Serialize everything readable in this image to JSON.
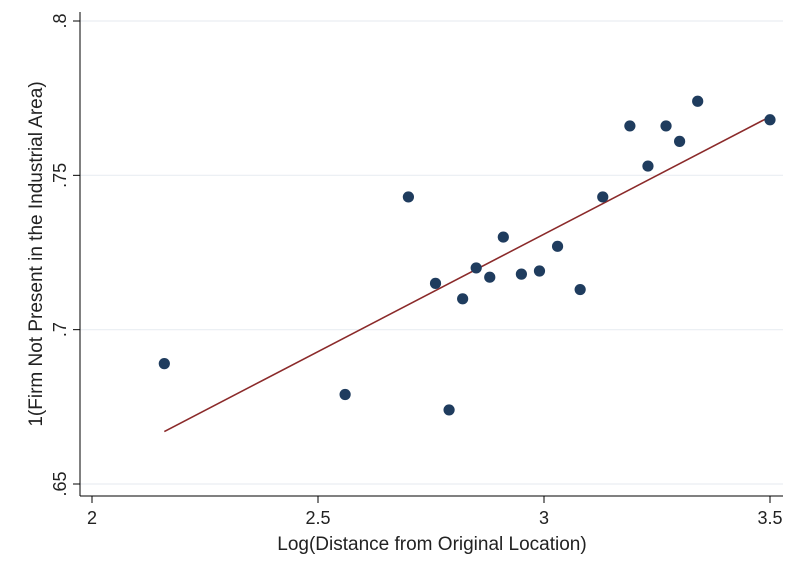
{
  "chart_data": {
    "type": "scatter",
    "xlabel": "Log(Distance from Original Location)",
    "ylabel": "1(Firm Not Present in the Industrial Area)",
    "xlim": [
      2.0,
      3.5
    ],
    "ylim": [
      0.65,
      0.8
    ],
    "xticks": [
      {
        "value": 2.0,
        "label": "2"
      },
      {
        "value": 2.5,
        "label": "2.5"
      },
      {
        "value": 3.0,
        "label": "3"
      },
      {
        "value": 3.5,
        "label": "3.5"
      }
    ],
    "yticks": [
      {
        "value": 0.65,
        "label": ".65"
      },
      {
        "value": 0.7,
        "label": ".7"
      },
      {
        "value": 0.75,
        "label": ".75"
      },
      {
        "value": 0.8,
        "label": ".8"
      }
    ],
    "grid": true,
    "points": [
      {
        "x": 2.16,
        "y": 0.689
      },
      {
        "x": 2.56,
        "y": 0.679
      },
      {
        "x": 2.7,
        "y": 0.743
      },
      {
        "x": 2.76,
        "y": 0.715
      },
      {
        "x": 2.79,
        "y": 0.674
      },
      {
        "x": 2.82,
        "y": 0.71
      },
      {
        "x": 2.85,
        "y": 0.72
      },
      {
        "x": 2.88,
        "y": 0.717
      },
      {
        "x": 2.91,
        "y": 0.73
      },
      {
        "x": 2.95,
        "y": 0.718
      },
      {
        "x": 2.99,
        "y": 0.719
      },
      {
        "x": 3.03,
        "y": 0.727
      },
      {
        "x": 3.08,
        "y": 0.713
      },
      {
        "x": 3.13,
        "y": 0.743
      },
      {
        "x": 3.19,
        "y": 0.766
      },
      {
        "x": 3.23,
        "y": 0.753
      },
      {
        "x": 3.27,
        "y": 0.766
      },
      {
        "x": 3.3,
        "y": 0.761
      },
      {
        "x": 3.34,
        "y": 0.774
      },
      {
        "x": 3.5,
        "y": 0.768
      }
    ],
    "fit_line": {
      "x": [
        2.16,
        3.5
      ],
      "y": [
        0.667,
        0.769
      ]
    },
    "colors": {
      "marker": "#1f3c5e",
      "fit_line": "#8b2a2a",
      "grid": "#eaeef2",
      "axis": "#000000"
    }
  }
}
